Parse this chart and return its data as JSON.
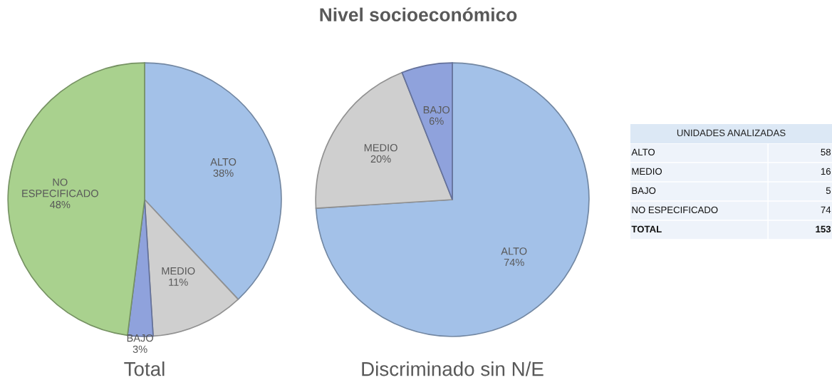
{
  "chart_data": [
    {
      "type": "pie",
      "xlabel": "Total",
      "categories": [
        "ALTO",
        "MEDIO",
        "BAJO",
        "NO ESPECIFICADO"
      ],
      "values": [
        38,
        11,
        3,
        48
      ],
      "value_labels": [
        "38%",
        "11%",
        "3%",
        "48%"
      ],
      "colors": [
        "#a3c1e8",
        "#cfcfcf",
        "#8fa2dc",
        "#a9d18e"
      ]
    },
    {
      "type": "pie",
      "title": "Nivel socioeconómico",
      "xlabel": "Discriminado sin N/E",
      "categories": [
        "ALTO",
        "MEDIO",
        "BAJO"
      ],
      "values": [
        74,
        20,
        6
      ],
      "value_labels": [
        "74%",
        "20%",
        "6%"
      ],
      "colors": [
        "#a3c1e8",
        "#cfcfcf",
        "#8fa2dc"
      ]
    },
    {
      "type": "other",
      "title": "UNIDADES ANALIZADAS",
      "categories": [
        "ALTO",
        "MEDIO",
        "BAJO",
        "NO ESPECIFICADO",
        "TOTAL"
      ],
      "values": [
        58,
        16,
        5,
        74,
        153
      ],
      "data_labels": true
    }
  ]
}
